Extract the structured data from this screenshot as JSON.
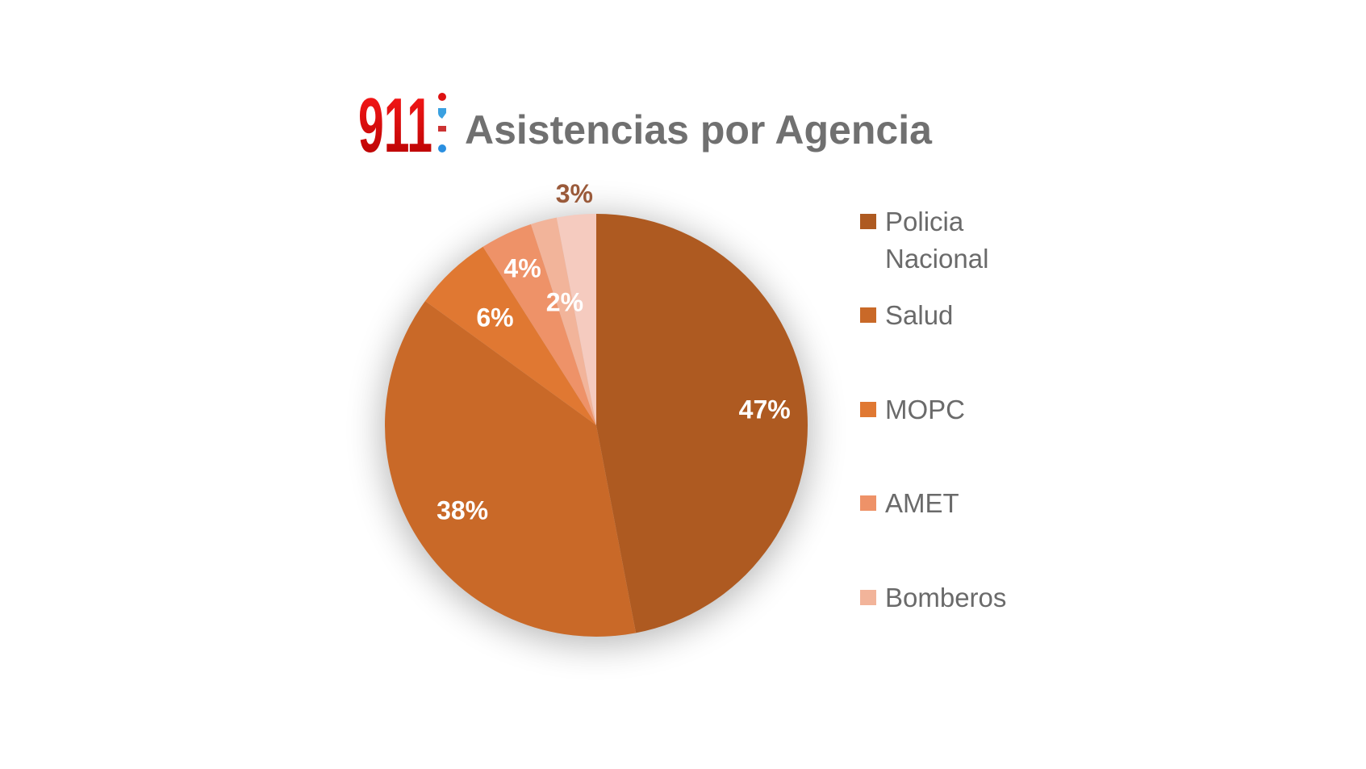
{
  "chart_data": {
    "type": "pie",
    "title": "Asistencias por Agencia",
    "logo_text": "911",
    "slices": [
      {
        "name": "Policia Nacional",
        "value": 47,
        "label": "47%",
        "color": "#AE5A21"
      },
      {
        "name": "Salud",
        "value": 38,
        "label": "38%",
        "color": "#C96928"
      },
      {
        "name": "MOPC",
        "value": 6,
        "label": "6%",
        "color": "#E07832"
      },
      {
        "name": "AMET",
        "value": 4,
        "label": "4%",
        "color": "#EE9268"
      },
      {
        "name": "Bomberos",
        "value": 2,
        "label": "2%",
        "color": "#F2B49A"
      },
      {
        "name": null,
        "value": 3,
        "label": "3%",
        "color": "#F5CBBF"
      }
    ],
    "legend": {
      "placement": "right",
      "items": [
        "Policia Nacional",
        "Salud",
        "MOPC",
        "AMET",
        "Bomberos"
      ]
    },
    "start_angle": "12 o'clock",
    "direction": "clockwise"
  }
}
